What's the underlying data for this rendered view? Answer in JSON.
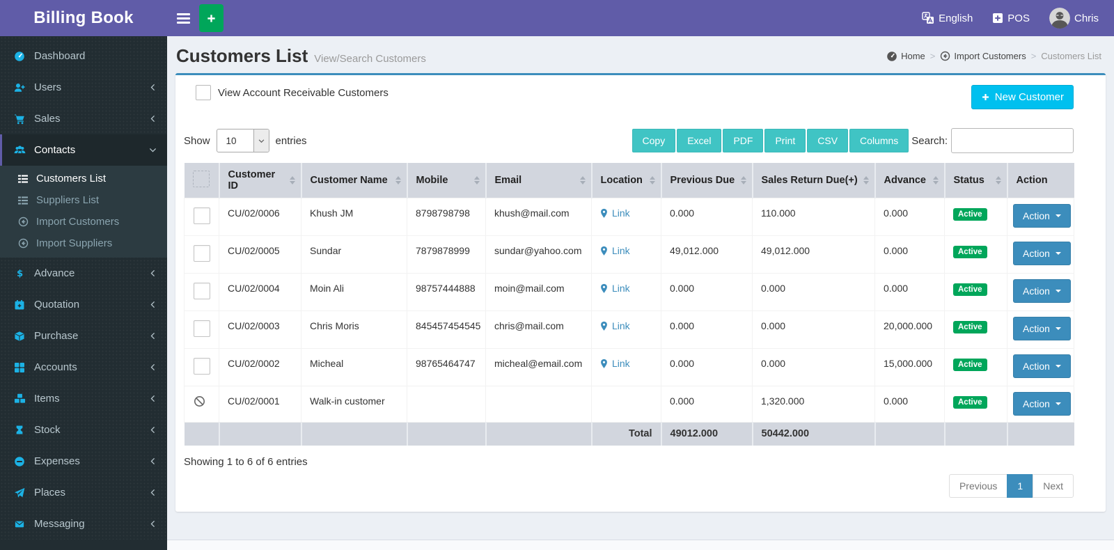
{
  "colors": {
    "purple": "#605ca8",
    "sidebar-dark": "#222d32",
    "submenu-dark": "#2c3b41",
    "icon-cyan": "#1cb2e5",
    "green": "#00a65a",
    "info-cyan": "#00c0ef",
    "teal": "#40c4c4",
    "primary-blue": "#3c8dbc",
    "table-head": "#d2d6de",
    "content-bg": "#ecf0f5"
  },
  "app": {
    "title": "Billing Book"
  },
  "topbar": {
    "language": "English",
    "pos": "POS",
    "user": "Chris"
  },
  "sidebar": {
    "items": [
      {
        "label": "Dashboard",
        "icon": "dashboard"
      },
      {
        "label": "Users",
        "icon": "user-plus",
        "chevron": "left"
      },
      {
        "label": "Sales",
        "icon": "cart",
        "chevron": "left"
      },
      {
        "label": "Contacts",
        "icon": "users",
        "chevron": "down",
        "active": true,
        "submenu": [
          {
            "label": "Customers List",
            "icon": "list",
            "active": true
          },
          {
            "label": "Suppliers List",
            "icon": "list"
          },
          {
            "label": "Import Customers",
            "icon": "import"
          },
          {
            "label": "Import Suppliers",
            "icon": "import"
          }
        ]
      },
      {
        "label": "Advance",
        "icon": "dollar",
        "chevron": "left"
      },
      {
        "label": "Quotation",
        "icon": "calendar-plus",
        "chevron": "left"
      },
      {
        "label": "Purchase",
        "icon": "cube",
        "chevron": "left"
      },
      {
        "label": "Accounts",
        "icon": "grid",
        "chevron": "left"
      },
      {
        "label": "Items",
        "icon": "cubes",
        "chevron": "left"
      },
      {
        "label": "Stock",
        "icon": "hourglass",
        "chevron": "left"
      },
      {
        "label": "Expenses",
        "icon": "minus-circle",
        "chevron": "left"
      },
      {
        "label": "Places",
        "icon": "paper-plane",
        "chevron": "left"
      },
      {
        "label": "Messaging",
        "icon": "envelope",
        "chevron": "left"
      }
    ]
  },
  "page": {
    "title": "Customers List",
    "subtitle": "View/Search Customers",
    "breadcrumb": [
      {
        "label": "Home",
        "icon": "dashboard"
      },
      {
        "label": "Import Customers",
        "icon": "import"
      },
      {
        "label": "Customers List",
        "current": true
      }
    ]
  },
  "card": {
    "filter_label": "View Account Receivable Customers",
    "filter_checked": false,
    "new_customer_label": "New Customer",
    "show_label": "Show",
    "page_size": "10",
    "entries_label": "entries",
    "export_buttons": [
      "Copy",
      "Excel",
      "PDF",
      "Print",
      "CSV",
      "Columns"
    ],
    "search_label": "Search:",
    "search_value": "",
    "table": {
      "headers": [
        {
          "label": "Customer ID",
          "sortable": true
        },
        {
          "label": "Customer Name",
          "sortable": true
        },
        {
          "label": "Mobile",
          "sortable": true
        },
        {
          "label": "Email",
          "sortable": true
        },
        {
          "label": "Location",
          "sortable": true
        },
        {
          "label": "Previous Due",
          "sortable": true
        },
        {
          "label": "Sales Return Due(+)",
          "sortable": true
        },
        {
          "label": "Advance",
          "sortable": true
        },
        {
          "label": "Status",
          "sortable": true
        },
        {
          "label": "Action",
          "sortable": false
        }
      ],
      "link_label": "Link",
      "action_label": "Action",
      "rows": [
        {
          "id": "CU/02/0006",
          "name": "Khush JM",
          "mobile": "8798798798",
          "email": "khush@mail.com",
          "location_link": true,
          "previous_due": "0.000",
          "sales_return_due": "110.000",
          "advance": "0.000",
          "status": "Active",
          "locked": false
        },
        {
          "id": "CU/02/0005",
          "name": "Sundar",
          "mobile": "7879878999",
          "email": "sundar@yahoo.com",
          "location_link": true,
          "previous_due": "49,012.000",
          "sales_return_due": "49,012.000",
          "advance": "0.000",
          "status": "Active",
          "locked": false
        },
        {
          "id": "CU/02/0004",
          "name": "Moin Ali",
          "mobile": "98757444888",
          "email": "moin@mail.com",
          "location_link": true,
          "previous_due": "0.000",
          "sales_return_due": "0.000",
          "advance": "0.000",
          "status": "Active",
          "locked": false
        },
        {
          "id": "CU/02/0003",
          "name": "Chris Moris",
          "mobile": "845457454545",
          "email": "chris@mail.com",
          "location_link": true,
          "previous_due": "0.000",
          "sales_return_due": "0.000",
          "advance": "20,000.000",
          "status": "Active",
          "locked": false
        },
        {
          "id": "CU/02/0002",
          "name": "Micheal",
          "mobile": "98765464747",
          "email": "micheal@email.com",
          "location_link": true,
          "previous_due": "0.000",
          "sales_return_due": "0.000",
          "advance": "15,000.000",
          "status": "Active",
          "locked": false
        },
        {
          "id": "CU/02/0001",
          "name": "Walk-in customer",
          "mobile": "",
          "email": "",
          "location_link": false,
          "previous_due": "0.000",
          "sales_return_due": "1,320.000",
          "advance": "0.000",
          "status": "Active",
          "locked": true
        }
      ],
      "total": {
        "label": "Total",
        "previous_due": "49012.000",
        "sales_return_due": "50442.000"
      }
    },
    "footer": {
      "showing": "Showing 1 to 6 of 6 entries",
      "pagination": [
        {
          "label": "Previous",
          "active": false
        },
        {
          "label": "1",
          "active": true
        },
        {
          "label": "Next",
          "active": false
        }
      ]
    }
  }
}
